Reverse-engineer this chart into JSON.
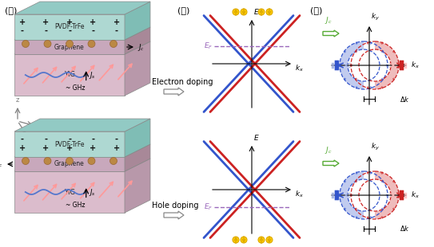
{
  "bg": "#ffffff",
  "blue": "#3355cc",
  "red": "#cc2222",
  "light_blue": "#99aadd",
  "light_red": "#ffbbbb",
  "purple": "#9966bb",
  "green": "#55aa33",
  "gold": "#ddaa00",
  "pvdf_face": "#aed8d2",
  "pvdf_side": "#7fbdb5",
  "pvdf_top": "#92cac4",
  "gr_face": "#c8a8bc",
  "gr_side": "#a88898",
  "gr_top": "#b898a8",
  "yig_face": "#dbbccc",
  "yig_side": "#b898aa",
  "yig_top": "#ccaabc",
  "spin_pink": "#ff9999",
  "wave_blue": "#5577cc",
  "panel_ga": "(가)",
  "panel_na": "(나)",
  "panel_da": "(다)",
  "pvdf_lbl": "PVDF-TrFe",
  "gr_lbl": "Graphene",
  "yig_lbl": "YIG",
  "ghz_lbl": "~ GHz",
  "elec_lbl": "Electron doping",
  "hole_lbl": "Hole doping"
}
